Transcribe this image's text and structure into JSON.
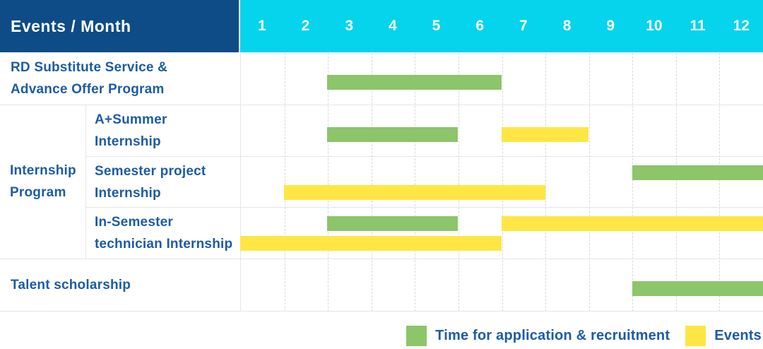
{
  "colors": {
    "header_bg": "#0d4c86",
    "months_bg": "#06d4ec",
    "green": "#8cc56a",
    "yellow": "#ffe644",
    "text_blue": "#1d5ba6",
    "grid_line": "#d9d9d9",
    "row_border": "#e5e5e5",
    "white": "#ffffff"
  },
  "header": {
    "title": "Events / Month",
    "months": [
      "1",
      "2",
      "3",
      "4",
      "5",
      "6",
      "7",
      "8",
      "9",
      "10",
      "11",
      "12"
    ]
  },
  "legend": {
    "items": [
      {
        "type": "application",
        "label": "Time for application & recruitment"
      },
      {
        "type": "event",
        "label": "Events"
      }
    ]
  },
  "chart_data": {
    "type": "gantt",
    "x_axis": {
      "label": "Month",
      "range": [
        1,
        12
      ],
      "ticks": [
        1,
        2,
        3,
        4,
        5,
        6,
        7,
        8,
        9,
        10,
        11,
        12
      ]
    },
    "legend": [
      {
        "type": "application",
        "label": "Time for application & recruitment",
        "color": "#8cc56a"
      },
      {
        "type": "event",
        "label": "Events",
        "color": "#ffe644"
      }
    ],
    "group_label": {
      "text": "Internship Program",
      "lines": [
        "Internship",
        "Program"
      ]
    },
    "rows": [
      {
        "label": "RD Substitute Service & Advance Offer Program",
        "label_lines": [
          "RD Substitute Service &",
          "Advance Offer Program"
        ],
        "group": null,
        "bars": [
          {
            "type": "application",
            "lane": "single",
            "start": 3,
            "end": 6
          }
        ]
      },
      {
        "label": "A+Summer Internship",
        "label_lines": [
          "A+Summer",
          "Internship"
        ],
        "group": "Internship Program",
        "bars": [
          {
            "type": "application",
            "lane": "single",
            "start": 3,
            "end": 5
          },
          {
            "type": "event",
            "lane": "single",
            "start": 7,
            "end": 8
          }
        ]
      },
      {
        "label": "Semester project Internship",
        "label_lines": [
          "Semester project",
          "Internship"
        ],
        "group": "Internship Program",
        "bars": [
          {
            "type": "application",
            "lane": "top",
            "start": 10,
            "end": 12
          },
          {
            "type": "event",
            "lane": "bottom",
            "start": 2,
            "end": 7
          }
        ]
      },
      {
        "label": "In-Semester technician Internship",
        "label_lines": [
          "In-Semester",
          "technician Internship"
        ],
        "group": "Internship Program",
        "bars": [
          {
            "type": "application",
            "lane": "top",
            "start": 3,
            "end": 5
          },
          {
            "type": "event",
            "lane": "top",
            "start": 7,
            "end": 12
          },
          {
            "type": "event",
            "lane": "bottom",
            "start": 1,
            "end": 6
          }
        ]
      },
      {
        "label": "Talent scholarship",
        "label_lines": [
          "Talent scholarship"
        ],
        "group": null,
        "bars": [
          {
            "type": "application",
            "lane": "single",
            "start": 10,
            "end": 12
          }
        ]
      }
    ]
  }
}
